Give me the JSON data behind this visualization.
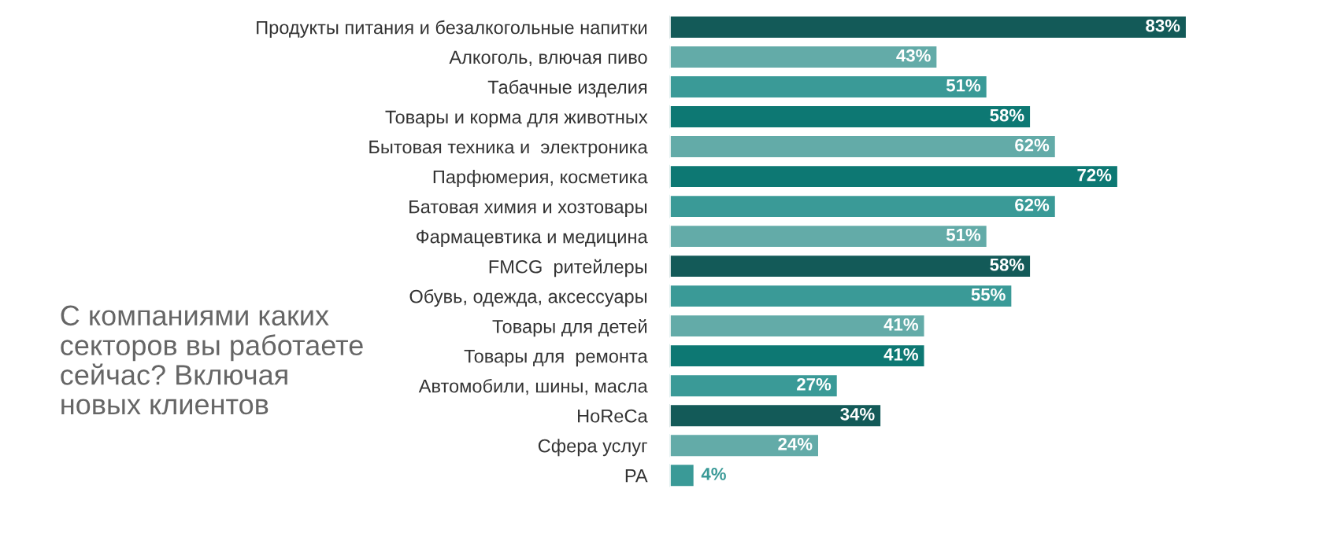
{
  "chart_data": {
    "type": "bar",
    "orientation": "horizontal",
    "title": "С компаниями каких\nсекторов вы работаете\nсейчас? Включая\nновых клиентов",
    "categories": [
      "Продукты питания и безалкогольные напитки",
      "Алкоголь, влючая пиво",
      "Табачные изделия",
      "Товары и корма для животных",
      "Бытовая техника и  электроника",
      "Парфюмерия, косметика",
      "Батовая химия и хозтовары",
      "Фармацевтика и медицина",
      "FMCG  ритейлеры",
      "Обувь, одежда, аксессуары",
      "Товары для детей",
      "Товары для  ремонта",
      "Автомобили, шины, масла",
      "HoReCa",
      "Сфера услуг",
      "PA"
    ],
    "values": [
      83,
      43,
      51,
      58,
      62,
      72,
      62,
      51,
      58,
      55,
      41,
      41,
      27,
      34,
      24,
      4
    ],
    "colors": [
      "#135a58",
      "#63aba8",
      "#3a9a97",
      "#0d7873",
      "#63aba8",
      "#0d7873",
      "#3a9a97",
      "#63aba8",
      "#135a58",
      "#3a9a97",
      "#63aba8",
      "#0d7873",
      "#3a9a97",
      "#135a58",
      "#63aba8",
      "#3a9a97"
    ],
    "value_labels": [
      "83%",
      "43%",
      "51%",
      "58%",
      "62%",
      "72%",
      "62%",
      "51%",
      "58%",
      "55%",
      "41%",
      "41%",
      "27%",
      "34%",
      "24%",
      "4%"
    ],
    "grid": false,
    "legend": false
  }
}
